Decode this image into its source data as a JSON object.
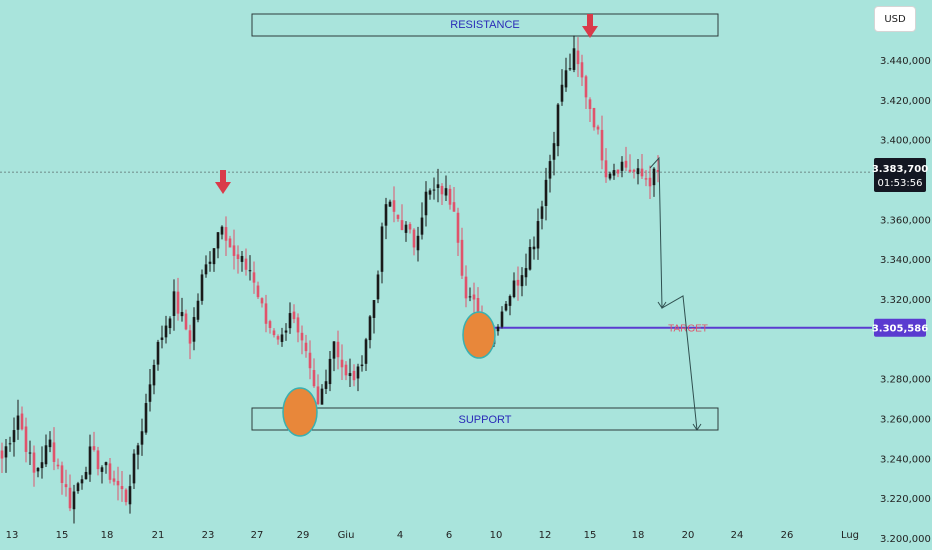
{
  "currency_button": "USD",
  "price_axis": {
    "ticks": [
      "3.440,000",
      "3.420,000",
      "3.400,000",
      "3.360,000",
      "3.340,000",
      "3.320,000",
      "3.280,000",
      "3.260,000",
      "3.240,000",
      "3.220,000",
      "3.200,000"
    ],
    "tick_values": [
      3440,
      3420,
      3400,
      3360,
      3340,
      3320,
      3280,
      3260,
      3240,
      3220,
      3200
    ]
  },
  "current_price": {
    "label": "3.383,700",
    "countdown": "01:53:56",
    "value": 3383.7
  },
  "target_price": {
    "label": "3.305,586",
    "value": 3305.586
  },
  "zones": {
    "resistance": "RESISTANCE",
    "support": "SUPPORT",
    "target": "TARGET"
  },
  "colors": {
    "background": "#a9e4dc",
    "up": "#1a1a1a",
    "down": "#e0536b",
    "target_line": "#5a3bd0",
    "zone_border": "#2d3b3b",
    "marker": "#e8873a",
    "arrow": "#d93a4a",
    "projection": "#2f4f4f"
  },
  "chart_data": {
    "type": "candlestick",
    "title": "",
    "x_ticks": [
      "13",
      "15",
      "18",
      "21",
      "23",
      "27",
      "29",
      "Giu",
      "4",
      "6",
      "10",
      "12",
      "15",
      "18",
      "20",
      "24",
      "26",
      "Lug"
    ],
    "y_range": [
      3200,
      3455
    ],
    "resistance_zone": [
      3451,
      3462
    ],
    "support_zone": [
      3244,
      3256
    ],
    "target_level": 3305.586,
    "anchors": [
      {
        "idx": 0,
        "c": 3240
      },
      {
        "idx": 4,
        "c": 3262
      },
      {
        "idx": 8,
        "c": 3232
      },
      {
        "idx": 12,
        "c": 3248
      },
      {
        "idx": 17,
        "c": 3218
      },
      {
        "idx": 22,
        "c": 3242
      },
      {
        "idx": 27,
        "c": 3232
      },
      {
        "idx": 31,
        "c": 3220
      },
      {
        "idx": 35,
        "c": 3256
      },
      {
        "idx": 38,
        "c": 3290
      },
      {
        "idx": 43,
        "c": 3320
      },
      {
        "idx": 47,
        "c": 3300
      },
      {
        "idx": 50,
        "c": 3330
      },
      {
        "idx": 55,
        "c": 3360
      },
      {
        "idx": 58,
        "c": 3340
      },
      {
        "idx": 62,
        "c": 3335
      },
      {
        "idx": 66,
        "c": 3308
      },
      {
        "idx": 70,
        "c": 3300
      },
      {
        "idx": 72,
        "c": 3315
      },
      {
        "idx": 74,
        "c": 3300
      },
      {
        "idx": 76,
        "c": 3290
      },
      {
        "idx": 79,
        "c": 3266
      },
      {
        "idx": 83,
        "c": 3300
      },
      {
        "idx": 86,
        "c": 3280
      },
      {
        "idx": 89,
        "c": 3282
      },
      {
        "idx": 93,
        "c": 3320
      },
      {
        "idx": 96,
        "c": 3368
      },
      {
        "idx": 100,
        "c": 3358
      },
      {
        "idx": 103,
        "c": 3348
      },
      {
        "idx": 106,
        "c": 3372
      },
      {
        "idx": 110,
        "c": 3375
      },
      {
        "idx": 113,
        "c": 3368
      },
      {
        "idx": 116,
        "c": 3320
      },
      {
        "idx": 119,
        "c": 3315
      },
      {
        "idx": 122,
        "c": 3300
      },
      {
        "idx": 126,
        "c": 3320
      },
      {
        "idx": 129,
        "c": 3330
      },
      {
        "idx": 133,
        "c": 3350
      },
      {
        "idx": 137,
        "c": 3390
      },
      {
        "idx": 140,
        "c": 3428
      },
      {
        "idx": 143,
        "c": 3442
      },
      {
        "idx": 145,
        "c": 3430
      },
      {
        "idx": 148,
        "c": 3410
      },
      {
        "idx": 151,
        "c": 3385
      },
      {
        "idx": 155,
        "c": 3388
      },
      {
        "idx": 159,
        "c": 3382
      },
      {
        "idx": 162,
        "c": 3380
      },
      {
        "idx": 164,
        "c": 3383.7
      }
    ],
    "candle_count": 165,
    "projection_path": [
      {
        "date_idx": 164,
        "price": 3383.7
      },
      {
        "date_idx": 167,
        "price": 3389
      },
      {
        "date_idx": 168,
        "price": 3306
      },
      {
        "date_idx": 171,
        "price": 3318
      },
      {
        "date_idx": 176,
        "price": 3244
      }
    ],
    "highlight_markers": [
      "support-touch",
      "target-touch"
    ],
    "arrows_down": [
      "local-high",
      "resistance-high"
    ]
  }
}
